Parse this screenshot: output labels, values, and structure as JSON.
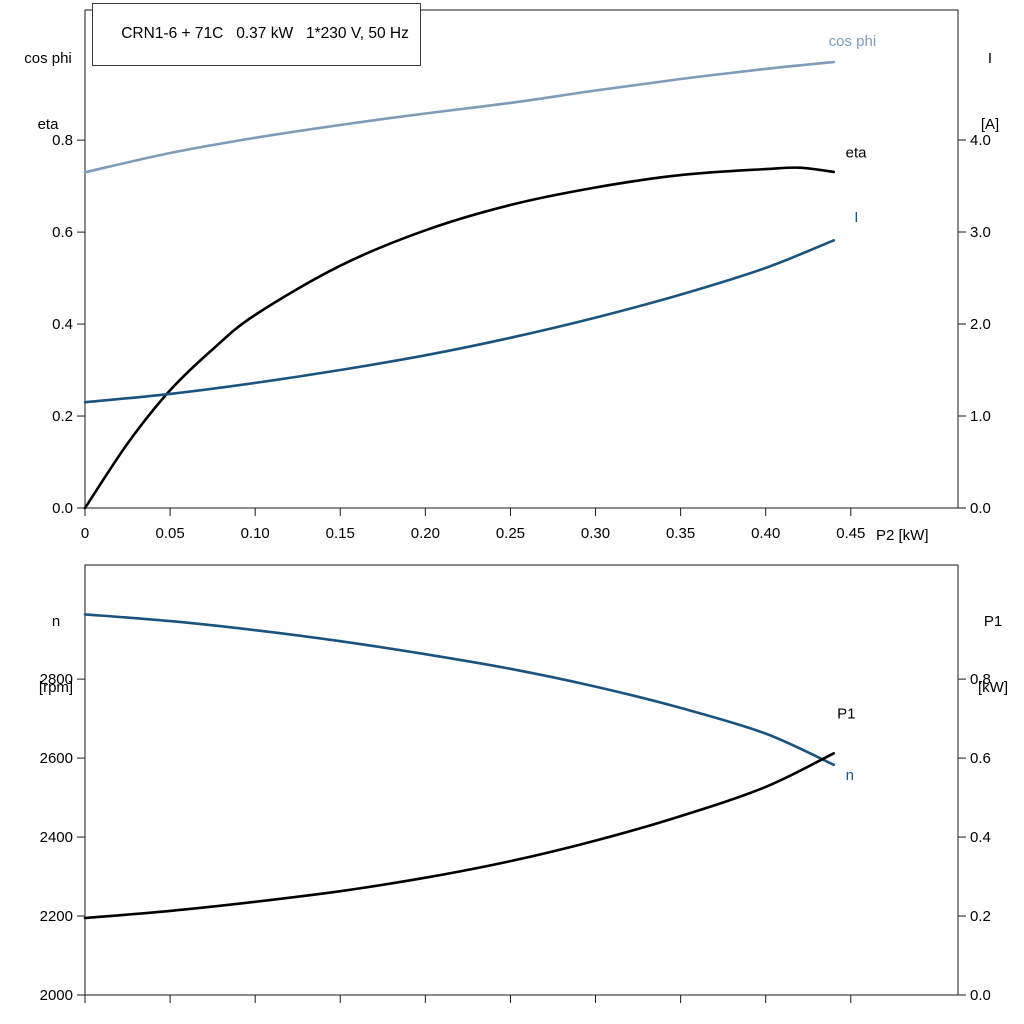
{
  "title_box": {
    "text": "CRN1-6 + 71C   0.37 kW   1*230 V, 50 Hz"
  },
  "colors": {
    "black": "#000000",
    "light_blue": "#7d9cba",
    "dark_blue": "#1a537e",
    "frame": "#1a1a1a"
  },
  "chart_data": [
    {
      "type": "line",
      "title": "CRN1-6 + 71C   0.37 kW   1*230 V, 50 Hz",
      "grid": false,
      "legend_position": "end-of-line-labels",
      "x_axis": {
        "min": 0,
        "max": 0.513,
        "label": "P2 [kW]",
        "ticks": [
          0,
          0.05,
          0.1,
          0.15,
          0.2,
          0.25,
          0.3,
          0.35,
          0.4,
          0.45
        ],
        "tick_labels": [
          "0",
          "0.05",
          "0.10",
          "0.15",
          "0.20",
          "0.25",
          "0.30",
          "0.35",
          "0.40",
          "0.45"
        ]
      },
      "left_axis": {
        "min": 0,
        "max": 1.083,
        "label_lines": [
          "cos phi",
          "eta"
        ],
        "ticks": [
          0.0,
          0.2,
          0.4,
          0.6,
          0.8
        ],
        "tick_labels": [
          "0.0",
          "0.2",
          "0.4",
          "0.6",
          "0.8"
        ]
      },
      "right_axis": {
        "min": 0,
        "max": 5.413,
        "label_lines": [
          "I",
          "[A]"
        ],
        "ticks": [
          0.0,
          1.0,
          2.0,
          3.0,
          4.0
        ],
        "tick_labels": [
          "0.0",
          "1.0",
          "2.0",
          "3.0",
          "4.0"
        ]
      },
      "series": [
        {
          "name": "cos phi",
          "label": "cos phi",
          "axis": "left",
          "color": "#7d9cba",
          "x": [
            0,
            0.05,
            0.1,
            0.15,
            0.2,
            0.25,
            0.3,
            0.35,
            0.4,
            0.44
          ],
          "y": [
            0.73,
            0.772,
            0.805,
            0.833,
            0.858,
            0.881,
            0.908,
            0.933,
            0.955,
            0.97
          ],
          "label_at": [
            0.437,
            1.005
          ]
        },
        {
          "name": "eta",
          "label": "eta",
          "axis": "left",
          "color": "#000000",
          "x": [
            0,
            0.025,
            0.05,
            0.075,
            0.1,
            0.15,
            0.2,
            0.25,
            0.3,
            0.35,
            0.4,
            0.42,
            0.44
          ],
          "y": [
            0.0,
            0.14,
            0.256,
            0.345,
            0.42,
            0.527,
            0.604,
            0.659,
            0.697,
            0.724,
            0.737,
            0.74,
            0.731
          ],
          "label_at": [
            0.447,
            0.762
          ]
        },
        {
          "name": "I",
          "label": "I",
          "axis": "right",
          "color": "#1a537e",
          "x": [
            0,
            0.05,
            0.1,
            0.15,
            0.2,
            0.25,
            0.3,
            0.35,
            0.4,
            0.44
          ],
          "y": [
            1.15,
            1.24,
            1.36,
            1.5,
            1.66,
            1.85,
            2.07,
            2.32,
            2.61,
            2.91
          ],
          "label_at": [
            0.452,
            3.11
          ]
        }
      ]
    },
    {
      "type": "line",
      "title": "",
      "grid": false,
      "x_axis": {
        "min": 0,
        "max": 0.513,
        "label": "",
        "ticks": [
          0,
          0.05,
          0.1,
          0.15,
          0.2,
          0.25,
          0.3,
          0.35,
          0.4,
          0.45
        ],
        "tick_labels": [
          "",
          "",
          "",
          "",
          "",
          "",
          "",
          "",
          "",
          ""
        ]
      },
      "left_axis": {
        "min": 2000,
        "max": 3089,
        "label_lines": [
          "n",
          "[rpm]"
        ],
        "ticks": [
          2000,
          2200,
          2400,
          2600,
          2800
        ],
        "tick_labels": [
          "2000",
          "2200",
          "2400",
          "2600",
          "2800"
        ]
      },
      "right_axis": {
        "min": 0,
        "max": 1.089,
        "label_lines": [
          "P1",
          "[kW]"
        ],
        "ticks": [
          0.0,
          0.2,
          0.4,
          0.6,
          0.8
        ],
        "tick_labels": [
          "0.0",
          "0.2",
          "0.4",
          "0.6",
          "0.8"
        ]
      },
      "series": [
        {
          "name": "n",
          "label": "n",
          "axis": "left",
          "color": "#1a537e",
          "x": [
            0,
            0.05,
            0.1,
            0.15,
            0.2,
            0.25,
            0.3,
            0.35,
            0.4,
            0.44
          ],
          "y": [
            2964,
            2947,
            2924,
            2896,
            2863,
            2826,
            2781,
            2727,
            2662,
            2583
          ],
          "label_at": [
            0.447,
            2545
          ]
        },
        {
          "name": "P1",
          "label": "P1",
          "axis": "right",
          "color": "#000000",
          "x": [
            0,
            0.05,
            0.1,
            0.15,
            0.2,
            0.25,
            0.3,
            0.35,
            0.4,
            0.44
          ],
          "y": [
            0.195,
            0.213,
            0.236,
            0.263,
            0.297,
            0.339,
            0.391,
            0.453,
            0.527,
            0.612
          ],
          "label_at": [
            0.442,
            0.7
          ]
        }
      ]
    }
  ]
}
